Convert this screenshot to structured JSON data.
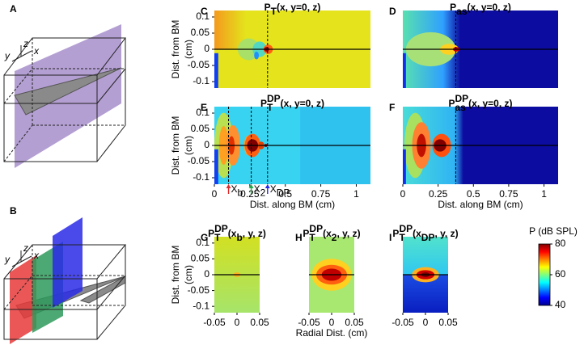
{
  "schematics": [
    {
      "panel": "A",
      "axes": [
        "y",
        "z",
        "x"
      ]
    },
    {
      "panel": "B",
      "axes": [
        "y",
        "z",
        "x"
      ]
    }
  ],
  "chart_data": [
    {
      "type": "heatmap",
      "panel": "C",
      "title": [
        {
          "text": "P"
        },
        {
          "text": "T",
          "script": "sub"
        },
        {
          "text": "(x, y=0, z)"
        }
      ],
      "xlim": [
        0,
        1.1
      ],
      "ylim": [
        -0.12,
        0.12
      ],
      "yticks": [
        0.1,
        0.05,
        0,
        -0.05,
        -0.1
      ],
      "ylabel": [
        "Dist. from BM",
        "(cm)"
      ],
      "vlines": [
        0.375
      ]
    },
    {
      "type": "heatmap",
      "panel": "D",
      "title": [
        {
          "text": "P"
        },
        {
          "text": "as",
          "script": "sub"
        },
        {
          "text": "(x, y=0, z)"
        }
      ],
      "xlim": [
        0,
        1.1
      ],
      "ylim": [
        -0.12,
        0.12
      ],
      "vlines": [
        0.375
      ]
    },
    {
      "type": "heatmap",
      "panel": "E",
      "title": [
        {
          "text": "P"
        },
        {
          "text": "DP",
          "script": "sup"
        },
        {
          "text": "T",
          "script": "sub"
        },
        {
          "text": "(x, y=0, z)"
        }
      ],
      "xlim": [
        0,
        1.1
      ],
      "ylim": [
        -0.12,
        0.12
      ],
      "xticks": [
        0,
        0.25,
        0.5,
        0.75,
        1
      ],
      "yticks": [
        0.1,
        0.05,
        0,
        -0.05,
        -0.1
      ],
      "xlabel": "Dist. along BM (cm)",
      "ylabel": [
        "Dist. from BM",
        "(cm)"
      ],
      "vlines": [
        0.1,
        0.26,
        0.375
      ],
      "markers": [
        {
          "x": 0.1,
          "color": "#e02a2a",
          "label": [
            {
              "text": "X"
            },
            {
              "text": "b",
              "script": "sub"
            }
          ]
        },
        {
          "x": 0.26,
          "color": "#22a84a",
          "label": [
            {
              "text": "X"
            },
            {
              "text": "2",
              "script": "sub"
            }
          ]
        },
        {
          "x": 0.375,
          "color": "#2a2ae0",
          "label": [
            {
              "text": "X"
            },
            {
              "text": "DP",
              "script": "sub"
            }
          ]
        }
      ]
    },
    {
      "type": "heatmap",
      "panel": "F",
      "title": [
        {
          "text": "P"
        },
        {
          "text": "DP",
          "script": "sup"
        },
        {
          "text": "as",
          "script": "sub"
        },
        {
          "text": "(x, y=0, z)"
        }
      ],
      "xlim": [
        0,
        1.1
      ],
      "ylim": [
        -0.12,
        0.12
      ],
      "xticks": [
        0,
        0.25,
        0.5,
        0.75,
        1
      ],
      "xlabel": "Dist. along BM (cm)",
      "vlines": [
        0.375
      ]
    },
    {
      "type": "heatmap",
      "panel": "G",
      "title": [
        {
          "text": "P"
        },
        {
          "text": "DP",
          "script": "sup"
        },
        {
          "text": "T",
          "script": "sub"
        },
        {
          "text": "(x"
        },
        {
          "text": "b",
          "script": "sub"
        },
        {
          "text": ", y, z)"
        }
      ],
      "xlim": [
        -0.05,
        0.05
      ],
      "ylim": [
        -0.12,
        0.12
      ],
      "xticks": [
        -0.05,
        0,
        0.05
      ],
      "yticks": [
        0.1,
        0.05,
        0,
        -0.05,
        -0.1
      ],
      "ylabel": [
        "Dist. from BM",
        "(cm)"
      ]
    },
    {
      "type": "heatmap",
      "panel": "H",
      "title": [
        {
          "text": "P"
        },
        {
          "text": "DP",
          "script": "sup"
        },
        {
          "text": "T",
          "script": "sub"
        },
        {
          "text": "(x"
        },
        {
          "text": "2",
          "script": "sub"
        },
        {
          "text": ", y, z)"
        }
      ],
      "xlim": [
        -0.05,
        0.05
      ],
      "ylim": [
        -0.12,
        0.12
      ],
      "xticks": [
        -0.05,
        0,
        0.05
      ],
      "xlabel": "Radial Dist. (cm)"
    },
    {
      "type": "heatmap",
      "panel": "I",
      "title": [
        {
          "text": "P"
        },
        {
          "text": "DP",
          "script": "sup"
        },
        {
          "text": "T",
          "script": "sub"
        },
        {
          "text": "(x"
        },
        {
          "text": "DP",
          "script": "sub"
        },
        {
          "text": ", y, z)"
        }
      ],
      "xlim": [
        -0.05,
        0.05
      ],
      "ylim": [
        -0.12,
        0.12
      ],
      "xticks": [
        -0.05,
        0,
        0.05
      ]
    },
    {
      "type": "colorbar",
      "title": "P (dB SPL)",
      "ylim": [
        40,
        80
      ],
      "yticks": [
        40,
        60,
        80
      ]
    }
  ]
}
